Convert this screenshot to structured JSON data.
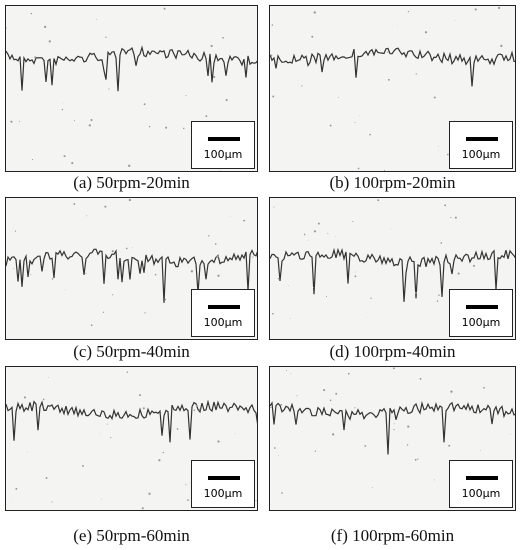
{
  "panels": [
    {
      "caption": "(a) 50rpm-20min",
      "scale_label": "100μm"
    },
    {
      "caption": "(b) 100rpm-20min",
      "scale_label": "100μm"
    },
    {
      "caption": "(c) 50rpm-40min",
      "scale_label": "100μm"
    },
    {
      "caption": "(d) 100rpm-40min",
      "scale_label": "100μm"
    },
    {
      "caption": "(e) 50rpm-60min",
      "scale_label": "100μm"
    },
    {
      "caption": "(f) 100rpm-60min",
      "scale_label": "100μm"
    }
  ]
}
